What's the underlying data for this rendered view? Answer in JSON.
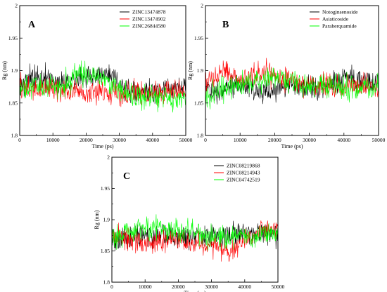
{
  "chart_data": [
    {
      "type": "line",
      "panel_label": "A",
      "xlabel": "Time (ps)",
      "ylabel": "Rg (nm)",
      "xlim": [
        0,
        50000
      ],
      "ylim": [
        1.8,
        2.0
      ],
      "x_ticks": [
        "0",
        "10000",
        "20000",
        "30000",
        "40000",
        "50000"
      ],
      "y_ticks": [
        "1.8",
        "1.85",
        "1.9",
        "1.95",
        "2"
      ],
      "legend_position": "top-right",
      "series": [
        {
          "name": "ZINC13474878",
          "color": "#000000",
          "x": [
            0,
            2500,
            5000,
            7500,
            10000,
            12500,
            15000,
            17500,
            20000,
            22500,
            25000,
            27500,
            30000,
            32500,
            35000,
            37500,
            40000,
            42500,
            45000,
            47500,
            50000
          ],
          "values": [
            1.88,
            1.885,
            1.89,
            1.888,
            1.882,
            1.885,
            1.887,
            1.888,
            1.89,
            1.892,
            1.893,
            1.892,
            1.875,
            1.87,
            1.865,
            1.865,
            1.868,
            1.87,
            1.872,
            1.872,
            1.875
          ]
        },
        {
          "name": "ZINC13474902",
          "color": "#ff0000",
          "x": [
            0,
            2500,
            5000,
            7500,
            10000,
            12500,
            15000,
            17500,
            20000,
            22500,
            25000,
            27500,
            30000,
            32500,
            35000,
            37500,
            40000,
            42500,
            45000,
            47500,
            50000
          ],
          "values": [
            1.875,
            1.872,
            1.87,
            1.872,
            1.873,
            1.87,
            1.868,
            1.866,
            1.865,
            1.865,
            1.866,
            1.868,
            1.865,
            1.865,
            1.865,
            1.865,
            1.867,
            1.868,
            1.868,
            1.87,
            1.868
          ]
        },
        {
          "name": "ZINC26844580",
          "color": "#00ff00",
          "x": [
            0,
            2500,
            5000,
            7500,
            10000,
            12500,
            15000,
            17500,
            20000,
            22500,
            25000,
            27500,
            30000,
            32500,
            35000,
            37500,
            40000,
            42500,
            45000,
            47500,
            50000
          ],
          "values": [
            1.87,
            1.872,
            1.875,
            1.872,
            1.875,
            1.878,
            1.885,
            1.893,
            1.895,
            1.893,
            1.888,
            1.885,
            1.87,
            1.862,
            1.86,
            1.858,
            1.858,
            1.86,
            1.858,
            1.857,
            1.858
          ]
        }
      ]
    },
    {
      "type": "line",
      "panel_label": "B",
      "xlabel": "Time (ps)",
      "ylabel": "Rg (nm)",
      "xlim": [
        0,
        50000
      ],
      "ylim": [
        1.8,
        2.0
      ],
      "x_ticks": [
        "0",
        "10000",
        "20000",
        "30000",
        "40000",
        "50000"
      ],
      "y_ticks": [
        "1.8",
        "1.85",
        "1.9",
        "1.95",
        "2"
      ],
      "legend_position": "top-right",
      "series": [
        {
          "name": "Notoginsenoside",
          "color": "#000000",
          "x": [
            0,
            2500,
            5000,
            7500,
            10000,
            12500,
            15000,
            17500,
            20000,
            22500,
            25000,
            27500,
            30000,
            32500,
            35000,
            37500,
            40000,
            42500,
            45000,
            47500,
            50000
          ],
          "values": [
            1.87,
            1.868,
            1.872,
            1.878,
            1.88,
            1.875,
            1.872,
            1.868,
            1.87,
            1.875,
            1.878,
            1.875,
            1.873,
            1.875,
            1.878,
            1.882,
            1.887,
            1.888,
            1.885,
            1.882,
            1.88
          ]
        },
        {
          "name": "Asiaticoside",
          "color": "#ff0000",
          "x": [
            0,
            2500,
            5000,
            7500,
            10000,
            12500,
            15000,
            17500,
            20000,
            22500,
            25000,
            27500,
            30000,
            32500,
            35000,
            37500,
            40000,
            42500,
            45000,
            47500,
            50000
          ],
          "values": [
            1.88,
            1.89,
            1.898,
            1.895,
            1.89,
            1.888,
            1.893,
            1.898,
            1.895,
            1.888,
            1.885,
            1.88,
            1.878,
            1.875,
            1.877,
            1.878,
            1.875,
            1.877,
            1.878,
            1.877,
            1.875
          ]
        },
        {
          "name": "Paraherquamide",
          "color": "#00ff00",
          "x": [
            0,
            2500,
            5000,
            7500,
            10000,
            12500,
            15000,
            17500,
            20000,
            22500,
            25000,
            27500,
            30000,
            32500,
            35000,
            37500,
            40000,
            42500,
            45000,
            47500,
            50000
          ],
          "values": [
            1.86,
            1.865,
            1.872,
            1.875,
            1.878,
            1.88,
            1.882,
            1.885,
            1.887,
            1.885,
            1.882,
            1.878,
            1.877,
            1.875,
            1.875,
            1.877,
            1.875,
            1.873,
            1.872,
            1.872,
            1.873
          ]
        }
      ]
    },
    {
      "type": "line",
      "panel_label": "C",
      "xlabel": "Time (ps)",
      "ylabel": "Rg (nm)",
      "xlim": [
        0,
        50000
      ],
      "ylim": [
        1.8,
        2.0
      ],
      "x_ticks": [
        "0",
        "10000",
        "20000",
        "30000",
        "40000",
        "50000"
      ],
      "y_ticks": [
        "1.8",
        "1.85",
        "1.9",
        "1.95",
        "2"
      ],
      "legend_position": "top-right",
      "series": [
        {
          "name": "ZINC08219868",
          "color": "#000000",
          "x": [
            0,
            2500,
            5000,
            7500,
            10000,
            12500,
            15000,
            17500,
            20000,
            22500,
            25000,
            27500,
            30000,
            32500,
            35000,
            37500,
            40000,
            42500,
            45000,
            47500,
            50000
          ],
          "values": [
            1.87,
            1.862,
            1.868,
            1.875,
            1.875,
            1.873,
            1.877,
            1.875,
            1.872,
            1.873,
            1.878,
            1.877,
            1.875,
            1.873,
            1.875,
            1.877,
            1.876,
            1.875,
            1.877,
            1.878,
            1.877
          ]
        },
        {
          "name": "ZINC08214943",
          "color": "#ff0000",
          "x": [
            0,
            2500,
            5000,
            7500,
            10000,
            12500,
            15000,
            17500,
            20000,
            22500,
            25000,
            27500,
            30000,
            32500,
            35000,
            37500,
            40000,
            42500,
            45000,
            47500,
            50000
          ],
          "values": [
            1.875,
            1.872,
            1.868,
            1.865,
            1.862,
            1.862,
            1.865,
            1.867,
            1.868,
            1.862,
            1.86,
            1.858,
            1.862,
            1.86,
            1.85,
            1.855,
            1.865,
            1.872,
            1.882,
            1.888,
            1.885
          ]
        },
        {
          "name": "ZINC04742519",
          "color": "#00ff00",
          "x": [
            0,
            2500,
            5000,
            7500,
            10000,
            12500,
            15000,
            17500,
            20000,
            22500,
            25000,
            27500,
            30000,
            32500,
            35000,
            37500,
            40000,
            42500,
            45000,
            47500,
            50000
          ],
          "values": [
            1.87,
            1.878,
            1.882,
            1.885,
            1.887,
            1.888,
            1.887,
            1.886,
            1.885,
            1.883,
            1.878,
            1.875,
            1.873,
            1.872,
            1.87,
            1.872,
            1.873,
            1.875,
            1.877,
            1.876,
            1.875
          ]
        }
      ]
    }
  ]
}
